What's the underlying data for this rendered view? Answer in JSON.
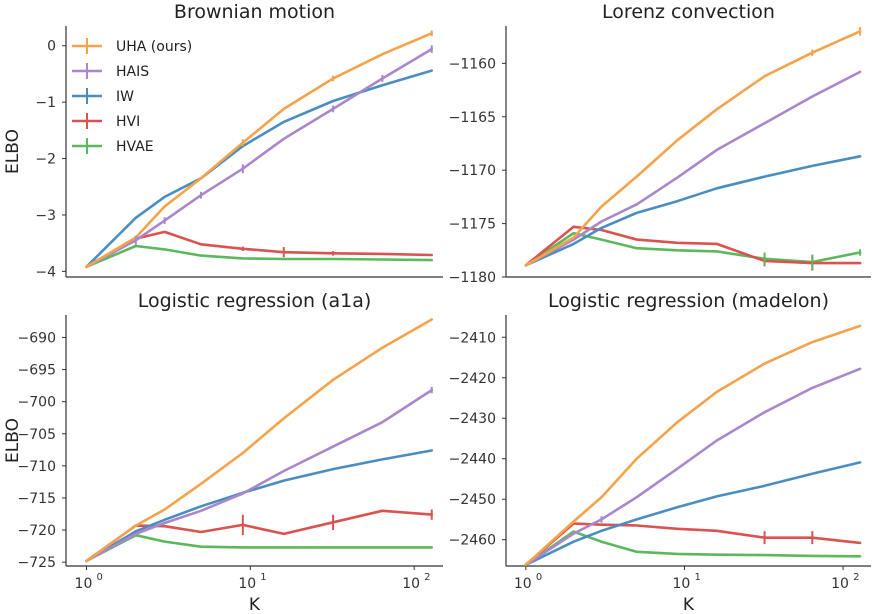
{
  "chart_data": {
    "type": "line",
    "shared_xlabel": "K",
    "ylabel": "ELBO",
    "x_scale": "log",
    "xlim": [
      0.75,
      150
    ],
    "x_tick_labels": [
      {
        "value": 1,
        "base": "10",
        "exp": "0"
      },
      {
        "value": 10,
        "base": "10",
        "exp": "1"
      },
      {
        "value": 100,
        "base": "10",
        "exp": "2"
      }
    ],
    "legend": {
      "location": "top-left of first panel",
      "entries": [
        "UHA (ours)",
        "HAIS",
        "IW",
        "HVI",
        "HVAE"
      ]
    },
    "colors": {
      "UHA (ours)": "#f5a34a",
      "HAIS": "#a887cd",
      "IW": "#4a8ec1",
      "HVI": "#d9534f",
      "HVAE": "#5cb85c"
    },
    "panels": [
      {
        "title": "Brownian motion",
        "ylim": [
          -4.1,
          0.35
        ],
        "yticks": [
          0,
          -1,
          -2,
          -3,
          -4
        ],
        "ytick_labels": [
          "0",
          "−1",
          "−2",
          "−3",
          "−4"
        ],
        "show_ylabel": true,
        "show_xaxis": false,
        "series": [
          {
            "name": "UHA (ours)",
            "x": [
              1,
              2,
              3,
              5,
              9,
              16,
              32,
              64,
              128
            ],
            "y": [
              -3.92,
              -3.4,
              -2.85,
              -2.35,
              -1.72,
              -1.12,
              -0.58,
              -0.15,
              0.22
            ]
          },
          {
            "name": "HAIS",
            "x": [
              1,
              2,
              3,
              5,
              9,
              16,
              32,
              64,
              128
            ],
            "y": [
              -3.92,
              -3.45,
              -3.1,
              -2.65,
              -2.18,
              -1.65,
              -1.12,
              -0.58,
              -0.06
            ]
          },
          {
            "name": "IW",
            "x": [
              1,
              2,
              3,
              5,
              9,
              16,
              32,
              64,
              128
            ],
            "y": [
              -3.92,
              -3.05,
              -2.68,
              -2.35,
              -1.78,
              -1.35,
              -0.98,
              -0.7,
              -0.44
            ]
          },
          {
            "name": "HVI",
            "x": [
              1,
              2,
              3,
              5,
              9,
              16,
              32,
              64,
              128
            ],
            "y": [
              -3.92,
              -3.42,
              -3.3,
              -3.52,
              -3.6,
              -3.66,
              -3.68,
              -3.69,
              -3.71
            ]
          },
          {
            "name": "HVAE",
            "x": [
              1,
              2,
              3,
              5,
              9,
              16,
              32,
              64,
              128
            ],
            "y": [
              -3.92,
              -3.55,
              -3.61,
              -3.72,
              -3.77,
              -3.78,
              -3.78,
              -3.79,
              -3.8
            ]
          }
        ]
      },
      {
        "title": "Lorenz convection",
        "ylim": [
          -1180,
          -1156.5
        ],
        "yticks": [
          -1160,
          -1165,
          -1170,
          -1175,
          -1180
        ],
        "ytick_labels": [
          "−1160",
          "−1165",
          "−1170",
          "−1175",
          "−1180"
        ],
        "show_ylabel": false,
        "show_xaxis": false,
        "series": [
          {
            "name": "UHA (ours)",
            "x": [
              1,
              2,
              3,
              5,
              9,
              16,
              32,
              64,
              128
            ],
            "y": [
              -1178.9,
              -1176.3,
              -1173.4,
              -1170.6,
              -1167.2,
              -1164.3,
              -1161.2,
              -1159.0,
              -1157.0
            ]
          },
          {
            "name": "HAIS",
            "x": [
              1,
              2,
              3,
              5,
              9,
              16,
              32,
              64,
              128
            ],
            "y": [
              -1178.9,
              -1176.5,
              -1174.8,
              -1173.2,
              -1170.7,
              -1168.1,
              -1165.6,
              -1163.1,
              -1160.8
            ]
          },
          {
            "name": "IW",
            "x": [
              1,
              2,
              3,
              5,
              9,
              16,
              32,
              64,
              128
            ],
            "y": [
              -1178.9,
              -1176.9,
              -1175.4,
              -1174.0,
              -1172.9,
              -1171.7,
              -1170.6,
              -1169.6,
              -1168.7
            ]
          },
          {
            "name": "HVI",
            "x": [
              1,
              2,
              3,
              5,
              9,
              16,
              32,
              64,
              128
            ],
            "y": [
              -1178.9,
              -1175.3,
              -1175.6,
              -1176.5,
              -1176.8,
              -1176.9,
              -1178.5,
              -1178.7,
              -1178.7
            ]
          },
          {
            "name": "HVAE",
            "x": [
              1,
              2,
              3,
              5,
              9,
              16,
              32,
              64,
              128
            ],
            "y": [
              -1178.9,
              -1175.9,
              -1176.5,
              -1177.3,
              -1177.5,
              -1177.6,
              -1178.3,
              -1178.6,
              -1177.7
            ]
          }
        ]
      },
      {
        "title": "Logistic regression (a1a)",
        "ylim": [
          -725.6,
          -686.5
        ],
        "yticks": [
          -690,
          -695,
          -700,
          -705,
          -710,
          -715,
          -720,
          -725
        ],
        "ytick_labels": [
          "−690",
          "−695",
          "−700",
          "−705",
          "−710",
          "−715",
          "−720",
          "−725"
        ],
        "show_ylabel": true,
        "show_xaxis": true,
        "series": [
          {
            "name": "UHA (ours)",
            "x": [
              1,
              2,
              3,
              5,
              9,
              16,
              32,
              64,
              128
            ],
            "y": [
              -724.8,
              -719.3,
              -716.8,
              -712.8,
              -708.0,
              -702.6,
              -696.6,
              -691.6,
              -687.2
            ]
          },
          {
            "name": "HAIS",
            "x": [
              1,
              2,
              3,
              5,
              9,
              16,
              32,
              64,
              128
            ],
            "y": [
              -724.8,
              -720.6,
              -718.9,
              -717.0,
              -714.3,
              -710.8,
              -707.0,
              -703.2,
              -698.2
            ]
          },
          {
            "name": "IW",
            "x": [
              1,
              2,
              3,
              5,
              9,
              16,
              32,
              64,
              128
            ],
            "y": [
              -724.8,
              -720.2,
              -718.4,
              -716.3,
              -714.2,
              -712.3,
              -710.5,
              -709.0,
              -707.6
            ]
          },
          {
            "name": "HVI",
            "x": [
              1,
              2,
              3,
              5,
              9,
              16,
              32,
              64,
              128
            ],
            "y": [
              -724.8,
              -719.3,
              -719.4,
              -720.3,
              -719.2,
              -720.6,
              -718.8,
              -717.0,
              -717.6
            ]
          },
          {
            "name": "HVAE",
            "x": [
              1,
              2,
              3,
              5,
              9,
              16,
              32,
              64,
              128
            ],
            "y": [
              -724.8,
              -720.8,
              -721.8,
              -722.6,
              -722.7,
              -722.7,
              -722.7,
              -722.7,
              -722.7
            ]
          }
        ]
      },
      {
        "title": "Logistic regression (madelon)",
        "ylim": [
          -2466.5,
          -2404.5
        ],
        "yticks": [
          -2410,
          -2420,
          -2430,
          -2440,
          -2450,
          -2460
        ],
        "ytick_labels": [
          "−2410",
          "−2420",
          "−2430",
          "−2440",
          "−2450",
          "−2460"
        ],
        "show_ylabel": false,
        "show_xaxis": true,
        "series": [
          {
            "name": "UHA (ours)",
            "x": [
              1,
              2,
              3,
              5,
              9,
              16,
              32,
              64,
              128
            ],
            "y": [
              -2466.2,
              -2455.5,
              -2449.5,
              -2440.0,
              -2431.0,
              -2423.5,
              -2416.5,
              -2411.2,
              -2407.2
            ]
          },
          {
            "name": "HAIS",
            "x": [
              1,
              2,
              3,
              5,
              9,
              16,
              32,
              64,
              128
            ],
            "y": [
              -2466.2,
              -2458.5,
              -2455.0,
              -2449.5,
              -2442.5,
              -2435.5,
              -2428.5,
              -2422.5,
              -2417.8
            ]
          },
          {
            "name": "IW",
            "x": [
              1,
              2,
              3,
              5,
              9,
              16,
              32,
              64,
              128
            ],
            "y": [
              -2466.2,
              -2460.5,
              -2457.8,
              -2455.0,
              -2452.0,
              -2449.3,
              -2446.7,
              -2443.7,
              -2440.9
            ]
          },
          {
            "name": "HVI",
            "x": [
              1,
              2,
              3,
              5,
              9,
              16,
              32,
              64,
              128
            ],
            "y": [
              -2466.2,
              -2456.0,
              -2456.3,
              -2456.5,
              -2457.3,
              -2457.8,
              -2459.5,
              -2459.5,
              -2460.8
            ]
          },
          {
            "name": "HVAE",
            "x": [
              1,
              2,
              3,
              5,
              9,
              16,
              32,
              64,
              128
            ],
            "y": [
              -2466.2,
              -2458.0,
              -2460.5,
              -2463.0,
              -2463.5,
              -2463.7,
              -2463.8,
              -2464.0,
              -2464.1
            ]
          }
        ]
      }
    ],
    "error_bars": [
      {
        "panel": 0,
        "series": "UHA (ours)",
        "x": 9,
        "err": 0.06
      },
      {
        "panel": 0,
        "series": "UHA (ours)",
        "x": 32,
        "err": 0.05
      },
      {
        "panel": 0,
        "series": "UHA (ours)",
        "x": 128,
        "err": 0.05
      },
      {
        "panel": 0,
        "series": "HAIS",
        "x": 2,
        "err": 0.08
      },
      {
        "panel": 0,
        "series": "HAIS",
        "x": 3,
        "err": 0.06
      },
      {
        "panel": 0,
        "series": "HAIS",
        "x": 5,
        "err": 0.06
      },
      {
        "panel": 0,
        "series": "HAIS",
        "x": 9,
        "err": 0.08
      },
      {
        "panel": 0,
        "series": "HAIS",
        "x": 32,
        "err": 0.06
      },
      {
        "panel": 0,
        "series": "HAIS",
        "x": 64,
        "err": 0.06
      },
      {
        "panel": 0,
        "series": "HAIS",
        "x": 128,
        "err": 0.07
      },
      {
        "panel": 0,
        "series": "HVI",
        "x": 9,
        "err": 0.04
      },
      {
        "panel": 0,
        "series": "HVI",
        "x": 16,
        "err": 0.09
      },
      {
        "panel": 0,
        "series": "HVI",
        "x": 32,
        "err": 0.04
      },
      {
        "panel": 1,
        "series": "UHA (ours)",
        "x": 128,
        "err": 0.4
      },
      {
        "panel": 1,
        "series": "UHA (ours)",
        "x": 64,
        "err": 0.3
      },
      {
        "panel": 1,
        "series": "HVI",
        "x": 32,
        "err": 0.5
      },
      {
        "panel": 1,
        "series": "HVI",
        "x": 64,
        "err": 0.7
      },
      {
        "panel": 1,
        "series": "HVAE",
        "x": 32,
        "err": 0.6
      },
      {
        "panel": 1,
        "series": "HVAE",
        "x": 64,
        "err": 0.7
      },
      {
        "panel": 1,
        "series": "HVAE",
        "x": 128,
        "err": 0.3
      },
      {
        "panel": 2,
        "series": "HVI",
        "x": 9,
        "err": 1.6
      },
      {
        "panel": 2,
        "series": "HVI",
        "x": 32,
        "err": 1.2
      },
      {
        "panel": 2,
        "series": "HVI",
        "x": 128,
        "err": 0.8
      },
      {
        "panel": 2,
        "series": "HAIS",
        "x": 128,
        "err": 0.5
      },
      {
        "panel": 3,
        "series": "HVI",
        "x": 32,
        "err": 1.6
      },
      {
        "panel": 3,
        "series": "HVI",
        "x": 64,
        "err": 1.6
      },
      {
        "panel": 3,
        "series": "HAIS",
        "x": 3,
        "err": 0.8
      }
    ]
  }
}
